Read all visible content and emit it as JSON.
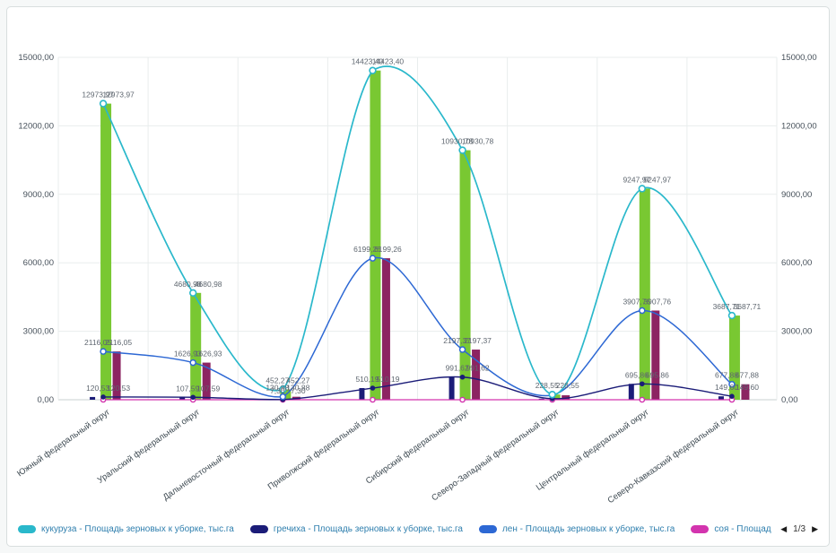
{
  "chart_data": {
    "type": "combo-line-bar",
    "title": "",
    "categories": [
      "Южный федеральный округ",
      "Уральский федеральный округ",
      "Дальневосточный федеральный округ",
      "Приволжский федеральный округ",
      "Сибирский федеральный округ",
      "Северо-Западный федеральный округ",
      "Центральный федеральный округ",
      "Северо-Кавказский федеральный округ"
    ],
    "y_axis": {
      "min": 0,
      "max": 15000,
      "step": 3000,
      "tick_labels": [
        "0,00",
        "3000,00",
        "6000,00",
        "9000,00",
        "12000,00",
        "15000,00"
      ],
      "dual_axis": true
    },
    "grid": true,
    "legend_position": "bottom",
    "series": [
      {
        "key": "kukuruza",
        "name": "кукуруза - Площадь зерновых к уборке, тыс.га",
        "line_color": "#2ab8cb",
        "bar_color": "#79c832",
        "values": [
          12973.97,
          4680.98,
          452.27,
          14423.4,
          10930.78,
          228.55,
          9247.97,
          3687.71
        ],
        "labels": [
          "12973,97",
          "4680,98",
          "452,27",
          "14423,40",
          "10930,78",
          "228,55",
          "9247,97",
          "3687,71"
        ]
      },
      {
        "key": "grechiha",
        "name": "гречиха - Площадь зерновых к уборке, тыс.га",
        "line_color": "#1b1c78",
        "bar_color": "#1b1c78",
        "values": [
          120.53,
          107.59,
          7.3,
          510.19,
          991.62,
          48.0,
          695.86,
          149.6
        ],
        "labels": [
          "120,53",
          "107,59",
          "7,30",
          "510,19",
          "991,62",
          null,
          "695,86",
          "149,60"
        ]
      },
      {
        "key": "len",
        "name": "лен - Площадь зерновых к уборке, тыс.га",
        "line_color": "#2d68d4",
        "bar_color": "#8c2462",
        "values": [
          2116.05,
          1626.93,
          130.88,
          6199.26,
          2197.37,
          195.0,
          3907.76,
          677.88
        ],
        "labels": [
          "2116,05",
          "1626,93",
          "130,88",
          "6199,26",
          "2197,37",
          null,
          "3907,76",
          "677,88"
        ]
      },
      {
        "key": "soya",
        "name": "соя - Площадь зерновых к уборке, тыс.га",
        "line_color": "#d334ae",
        "bar_color": "#d334ae",
        "values": [
          0,
          0,
          0,
          0,
          0,
          0,
          0,
          0
        ],
        "labels": [
          null,
          null,
          null,
          null,
          null,
          null,
          null,
          null
        ]
      }
    ]
  },
  "legend": {
    "pagination": {
      "label": "1/3",
      "prev_icon": "◀",
      "next_icon": "▶"
    }
  }
}
